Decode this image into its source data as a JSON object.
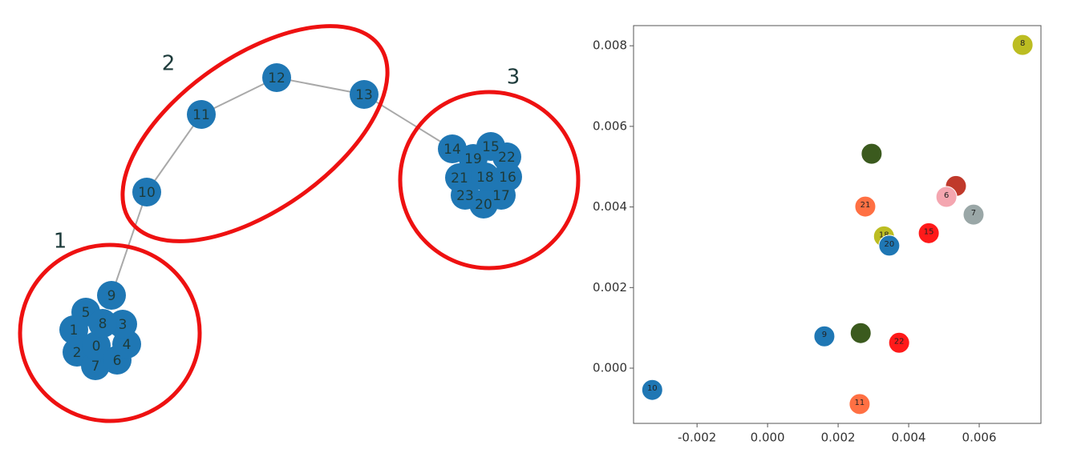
{
  "graph": {
    "nodes": [
      "0",
      "1",
      "2",
      "3",
      "4",
      "5",
      "6",
      "7",
      "8",
      "9",
      "10",
      "11",
      "12",
      "13",
      "14",
      "15",
      "16",
      "17",
      "18",
      "19",
      "20",
      "21",
      "22",
      "23"
    ],
    "clusters": [
      "1",
      "2",
      "3"
    ]
  },
  "chart_data": {
    "type": "scatter",
    "x": [
      0.00723,
      -0.00327,
      0.00261,
      0.00161,
      0.00264,
      0.00295,
      0.00277,
      0.00534,
      0.00507,
      0.00584,
      0.0033,
      0.00345,
      0.00457,
      0.00373
    ],
    "values": [
      0.00802,
      -0.00054,
      -0.00089,
      0.00079,
      0.00087,
      0.00532,
      0.00401,
      0.00452,
      0.00425,
      0.00381,
      0.00327,
      0.00304,
      0.00335,
      0.00063
    ],
    "labels": [
      "8",
      "10",
      "11",
      "9",
      null,
      null,
      "21",
      null,
      "6",
      "7",
      "18",
      "20",
      "15",
      "22"
    ],
    "colors": [
      "#bcbd22",
      "#1f77b4",
      "#ff7043",
      "#1f77b4",
      "#3b5a1e",
      "#3b5a1e",
      "#ff7043",
      "#c0392b",
      "#f4a6b0",
      "#9aa7a7",
      "#bcbd22",
      "#1f77b4",
      "#ff1a1a",
      "#ff1a1a"
    ],
    "xlim": [
      -0.0038,
      0.00775
    ],
    "ylim": [
      -0.00137,
      0.0085
    ],
    "xticks": [
      {
        "value": -0.002,
        "label": "-0.002"
      },
      {
        "value": 0,
        "label": "0.000"
      },
      {
        "value": 0.002,
        "label": "0.002"
      },
      {
        "value": 0.004,
        "label": "0.004"
      },
      {
        "value": 0.006,
        "label": "0.006"
      }
    ],
    "yticks": [
      {
        "value": 0,
        "label": "0.000"
      },
      {
        "value": 0.002,
        "label": "0.002"
      },
      {
        "value": 0.004,
        "label": "0.004"
      },
      {
        "value": 0.006,
        "label": "0.006"
      },
      {
        "value": 0.008,
        "label": "0.008"
      }
    ]
  }
}
